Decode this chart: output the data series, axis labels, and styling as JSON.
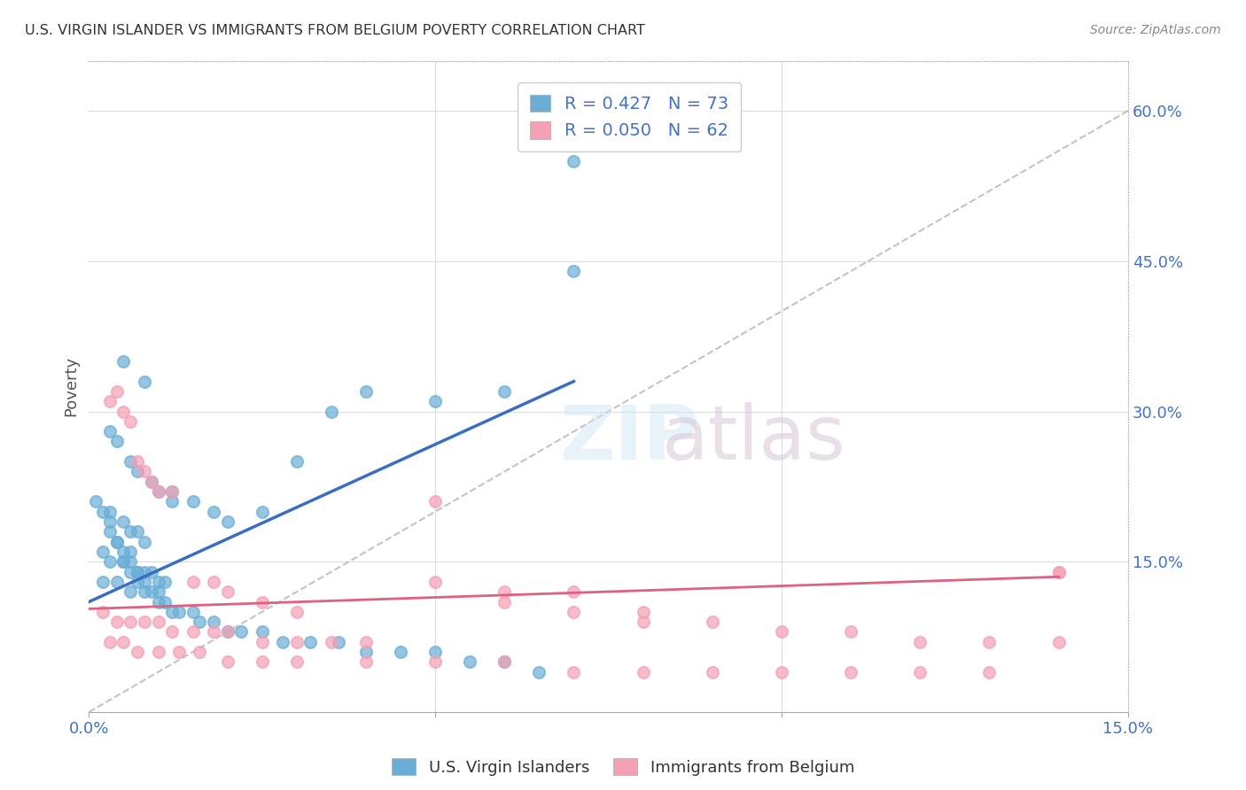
{
  "title": "U.S. VIRGIN ISLANDER VS IMMIGRANTS FROM BELGIUM POVERTY CORRELATION CHART",
  "source": "Source: ZipAtlas.com",
  "xlabel_bottom": "",
  "ylabel": "Poverty",
  "xlim": [
    0.0,
    0.15
  ],
  "ylim": [
    0.0,
    0.65
  ],
  "xticks": [
    0.0,
    0.05,
    0.1,
    0.15
  ],
  "xtick_labels": [
    "0.0%",
    "",
    "",
    "15.0%"
  ],
  "ytick_labels_right": [
    "60.0%",
    "45.0%",
    "30.0%",
    "15.0%"
  ],
  "ytick_positions_right": [
    0.6,
    0.45,
    0.3,
    0.15
  ],
  "legend_R1": "0.427",
  "legend_N1": "73",
  "legend_R2": "0.050",
  "legend_N2": "62",
  "color_blue": "#6aaed6",
  "color_pink": "#f4a0b5",
  "color_blue_dark": "#4472c4",
  "color_pink_dark": "#e06080",
  "color_text_blue": "#4472c4",
  "watermark": "ZIPatlas",
  "blue_scatter_x": [
    0.005,
    0.008,
    0.003,
    0.004,
    0.006,
    0.007,
    0.009,
    0.01,
    0.012,
    0.003,
    0.005,
    0.006,
    0.007,
    0.008,
    0.004,
    0.006,
    0.002,
    0.003,
    0.005,
    0.007,
    0.008,
    0.009,
    0.01,
    0.011,
    0.002,
    0.004,
    0.006,
    0.008,
    0.012,
    0.015,
    0.018,
    0.02,
    0.025,
    0.03,
    0.035,
    0.04,
    0.05,
    0.06,
    0.07,
    0.001,
    0.002,
    0.003,
    0.003,
    0.004,
    0.005,
    0.005,
    0.006,
    0.006,
    0.007,
    0.007,
    0.008,
    0.009,
    0.01,
    0.01,
    0.011,
    0.012,
    0.013,
    0.015,
    0.016,
    0.018,
    0.02,
    0.022,
    0.025,
    0.028,
    0.032,
    0.036,
    0.04,
    0.045,
    0.05,
    0.055,
    0.06,
    0.065,
    0.07
  ],
  "blue_scatter_y": [
    0.35,
    0.33,
    0.28,
    0.27,
    0.25,
    0.24,
    0.23,
    0.22,
    0.21,
    0.2,
    0.19,
    0.18,
    0.18,
    0.17,
    0.17,
    0.16,
    0.16,
    0.15,
    0.15,
    0.14,
    0.14,
    0.14,
    0.13,
    0.13,
    0.13,
    0.13,
    0.12,
    0.12,
    0.22,
    0.21,
    0.2,
    0.19,
    0.2,
    0.25,
    0.3,
    0.32,
    0.31,
    0.32,
    0.44,
    0.21,
    0.2,
    0.19,
    0.18,
    0.17,
    0.16,
    0.15,
    0.15,
    0.14,
    0.14,
    0.13,
    0.13,
    0.12,
    0.12,
    0.11,
    0.11,
    0.1,
    0.1,
    0.1,
    0.09,
    0.09,
    0.08,
    0.08,
    0.08,
    0.07,
    0.07,
    0.07,
    0.06,
    0.06,
    0.06,
    0.05,
    0.05,
    0.04,
    0.55
  ],
  "pink_scatter_x": [
    0.003,
    0.004,
    0.005,
    0.006,
    0.007,
    0.008,
    0.009,
    0.01,
    0.012,
    0.015,
    0.018,
    0.02,
    0.025,
    0.03,
    0.002,
    0.004,
    0.006,
    0.008,
    0.01,
    0.012,
    0.015,
    0.018,
    0.02,
    0.025,
    0.03,
    0.035,
    0.04,
    0.05,
    0.06,
    0.07,
    0.08,
    0.09,
    0.1,
    0.11,
    0.12,
    0.13,
    0.14,
    0.003,
    0.005,
    0.007,
    0.01,
    0.013,
    0.016,
    0.02,
    0.025,
    0.03,
    0.04,
    0.05,
    0.06,
    0.07,
    0.08,
    0.09,
    0.1,
    0.11,
    0.12,
    0.13,
    0.14,
    0.05,
    0.06,
    0.07,
    0.08,
    0.14
  ],
  "pink_scatter_y": [
    0.31,
    0.32,
    0.3,
    0.29,
    0.25,
    0.24,
    0.23,
    0.22,
    0.22,
    0.13,
    0.13,
    0.12,
    0.11,
    0.1,
    0.1,
    0.09,
    0.09,
    0.09,
    0.09,
    0.08,
    0.08,
    0.08,
    0.08,
    0.07,
    0.07,
    0.07,
    0.07,
    0.13,
    0.11,
    0.1,
    0.09,
    0.09,
    0.08,
    0.08,
    0.07,
    0.07,
    0.07,
    0.07,
    0.07,
    0.06,
    0.06,
    0.06,
    0.06,
    0.05,
    0.05,
    0.05,
    0.05,
    0.05,
    0.05,
    0.04,
    0.04,
    0.04,
    0.04,
    0.04,
    0.04,
    0.04,
    0.14,
    0.21,
    0.12,
    0.12,
    0.1,
    0.14
  ],
  "blue_trend_x": [
    0.0,
    0.07
  ],
  "blue_trend_y": [
    0.11,
    0.33
  ],
  "pink_trend_x": [
    0.0,
    0.14
  ],
  "pink_trend_y": [
    0.103,
    0.135
  ],
  "diag_line_x": [
    0.0,
    0.15
  ],
  "diag_line_y": [
    0.0,
    0.6
  ],
  "background_color": "#ffffff"
}
